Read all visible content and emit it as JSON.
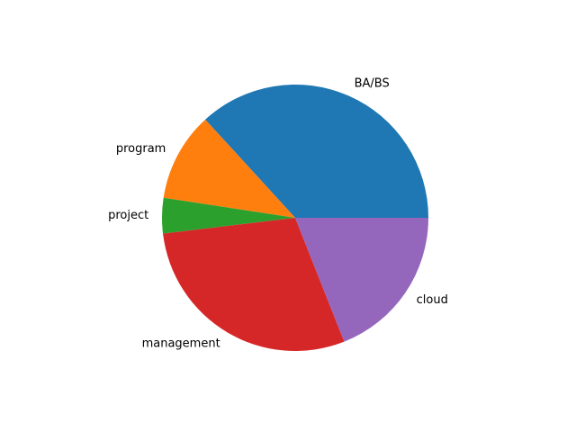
{
  "chart_data": {
    "type": "pie",
    "title": "",
    "start_angle_deg": 0,
    "direction": "counterclockwise",
    "slices": [
      {
        "label": "BA/BS",
        "value": 36.8,
        "color": "#1f77b4"
      },
      {
        "label": "program",
        "value": 10.8,
        "color": "#ff7f0e"
      },
      {
        "label": "project",
        "value": 4.3,
        "color": "#2ca02c"
      },
      {
        "label": "management",
        "value": 29.1,
        "color": "#d62728"
      },
      {
        "label": "cloud",
        "value": 19.0,
        "color": "#9467bd"
      }
    ]
  }
}
